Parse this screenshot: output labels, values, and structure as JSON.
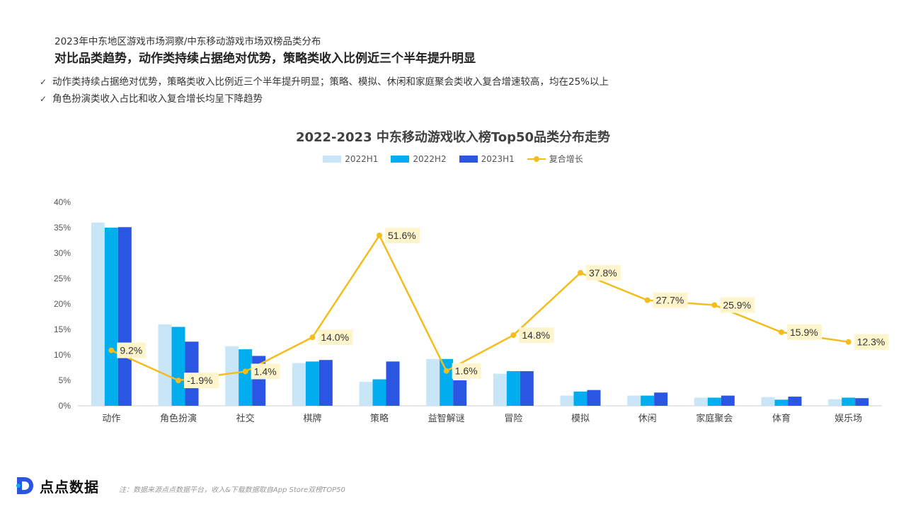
{
  "header": {
    "subtitle": "2023年中东地区游戏市场洞察/中东移动游戏市场双榜品类分布",
    "headline": "对比品类趋势，动作类持续占据绝对优势，策略类收入比例近三个半年提升明显",
    "bullets": [
      "动作类持续占据绝对优势，策略类收入比例近三个半年提升明显；策略、模拟、休闲和家庭聚会类收入复合增速较高，均在25%以上",
      "角色扮演类收入占比和收入复合增长均呈下降趋势"
    ]
  },
  "chart_data": {
    "type": "bar",
    "title": "2022-2023 中东移动游戏收入榜Top50品类分布走势",
    "categories": [
      "动作",
      "角色扮演",
      "社交",
      "棋牌",
      "策略",
      "益智解谜",
      "冒险",
      "模拟",
      "休闲",
      "家庭聚会",
      "体育",
      "娱乐场"
    ],
    "series": [
      {
        "name": "2022H1",
        "color": "#C9E6F8",
        "values": [
          36.0,
          16.0,
          11.7,
          8.4,
          4.7,
          9.2,
          6.3,
          2.0,
          2.0,
          1.6,
          1.7,
          1.3
        ]
      },
      {
        "name": "2022H2",
        "color": "#00AEEF",
        "values": [
          35.0,
          15.5,
          11.1,
          8.7,
          5.2,
          9.2,
          6.8,
          2.8,
          2.0,
          1.6,
          1.2,
          1.6
        ]
      },
      {
        "name": "2023H1",
        "color": "#2B55E3",
        "values": [
          35.1,
          12.6,
          9.8,
          9.0,
          8.7,
          5.0,
          6.8,
          3.1,
          2.6,
          2.0,
          1.8,
          1.5
        ]
      }
    ],
    "line_series": {
      "name": "复合增长",
      "color": "#F4BC1C",
      "values": [
        9.2,
        -1.9,
        1.4,
        14.0,
        51.6,
        1.6,
        14.8,
        37.8,
        27.7,
        25.9,
        15.9,
        12.3
      ],
      "labels": [
        "9.2%",
        "-1.9%",
        "1.4%",
        "14.0%",
        "51.6%",
        "1.6%",
        "14.8%",
        "37.8%",
        "27.7%",
        "25.9%",
        "15.9%",
        "12.3%"
      ]
    },
    "ylim": [
      0,
      40
    ],
    "yticks": [
      "0%",
      "5%",
      "10%",
      "15%",
      "20%",
      "25%",
      "30%",
      "35%",
      "40%"
    ],
    "legend_position": "top-center",
    "grid": false
  },
  "footer": {
    "brand": "点点数据",
    "source": "注：数据来源点点数据平台，收入&下载数据取自App Store双榜TOP50"
  }
}
